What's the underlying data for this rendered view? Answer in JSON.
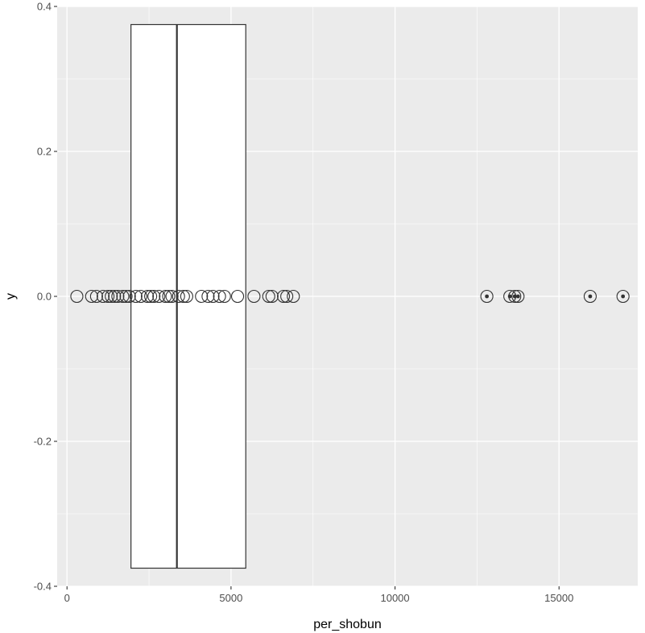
{
  "chart_data": {
    "type": "boxplot-with-jitter-points",
    "xlabel": "per_shobun",
    "ylabel": "y",
    "xlim": [
      -300,
      17400
    ],
    "ylim": [
      -0.4,
      0.4
    ],
    "grid": true,
    "x_ticks": [
      0,
      5000,
      10000,
      15000
    ],
    "x_tick_labels": [
      "0",
      "5000",
      "10000",
      "15000"
    ],
    "y_ticks": [
      -0.4,
      -0.2,
      0.0,
      0.2,
      0.4
    ],
    "y_tick_labels": [
      "-0.4",
      "-0.2",
      "0.0",
      "0.2",
      "0.4"
    ],
    "x_minor_ticks": [
      2500,
      7500,
      12500
    ],
    "y_minor_ticks": [
      -0.3,
      -0.1,
      0.1,
      0.3
    ],
    "box": {
      "q1": 1950,
      "median": 3350,
      "q3": 5450,
      "ymin": -0.375,
      "ymax": 0.375,
      "fill": "#ffffff",
      "stroke": "#333333"
    },
    "points": {
      "y": 0,
      "x": [
        300,
        750,
        900,
        1100,
        1250,
        1350,
        1450,
        1550,
        1700,
        1800,
        1900,
        2100,
        2250,
        2450,
        2550,
        2650,
        2800,
        3000,
        3100,
        3200,
        3400,
        3550,
        3650,
        4100,
        4300,
        4450,
        4650,
        4800,
        5200,
        5700,
        6150,
        6250,
        6600,
        6700,
        6900
      ],
      "outliers_x": [
        12800,
        13500,
        13650,
        13750,
        15950,
        16950
      ],
      "stroke": "#333333"
    },
    "panel_background": "#ebebeb",
    "grid_color": "#ffffff"
  }
}
